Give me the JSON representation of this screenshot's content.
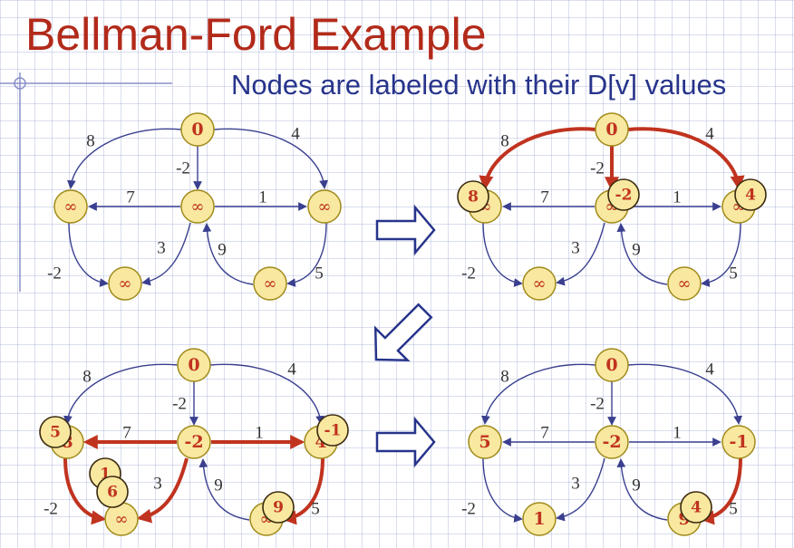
{
  "title": "Bellman-Ford Example",
  "subtitle": "Nodes are labeled with their D[v] values",
  "colors": {
    "title": "#b22a1a",
    "subtitle": "#27348b",
    "edge": "#3a3f8f",
    "highlight_edge": "#c0331f",
    "node_fill": "#f8e8a0",
    "node_text": "#c0331f",
    "arrow_outline": "#27348b"
  },
  "edges": [
    {
      "from": "s",
      "to": "a",
      "weight": "8"
    },
    {
      "from": "s",
      "to": "b",
      "weight": "-2"
    },
    {
      "from": "s",
      "to": "c",
      "weight": "4"
    },
    {
      "from": "b",
      "to": "a",
      "weight": "7"
    },
    {
      "from": "b",
      "to": "c",
      "weight": "1"
    },
    {
      "from": "b",
      "to": "d",
      "weight": "3"
    },
    {
      "from": "a",
      "to": "d",
      "weight": "-2"
    },
    {
      "from": "e",
      "to": "b",
      "weight": "9"
    },
    {
      "from": "c",
      "to": "e",
      "weight": "5"
    }
  ],
  "frames": [
    {
      "nodes": {
        "s": "0",
        "a": "∞",
        "b": "∞",
        "c": "∞",
        "d": "∞",
        "e": "∞"
      },
      "highlight": [],
      "badges": []
    },
    {
      "nodes": {
        "s": "0",
        "a": "∞",
        "b": "∞",
        "c": "∞",
        "d": "∞",
        "e": "∞"
      },
      "highlight": [
        "s-a",
        "s-b",
        "s-c"
      ],
      "badges": [
        {
          "node": "a",
          "value": "8",
          "side": "upper-left"
        },
        {
          "node": "b",
          "value": "-2",
          "side": "upper-right"
        },
        {
          "node": "c",
          "value": "4",
          "side": "upper-right"
        }
      ]
    },
    {
      "nodes": {
        "s": "0",
        "a": "8",
        "b": "-2",
        "c": "4",
        "d": "∞",
        "e": "∞"
      },
      "highlight": [
        "b-a",
        "b-c",
        "b-d",
        "a-d",
        "c-e"
      ],
      "badges": [
        {
          "node": "a",
          "value": "5",
          "side": "upper-left"
        },
        {
          "node": "c",
          "value": "-1",
          "side": "upper-right"
        },
        {
          "node": "d",
          "value": "1",
          "side": "stack-top"
        },
        {
          "node": "d",
          "value": "6",
          "side": "stack-mid"
        },
        {
          "node": "e",
          "value": "9",
          "side": "upper-right"
        }
      ]
    },
    {
      "nodes": {
        "s": "0",
        "a": "5",
        "b": "-2",
        "c": "-1",
        "d": "1",
        "e": "9"
      },
      "highlight": [
        "c-e"
      ],
      "badges": [
        {
          "node": "e",
          "value": "4",
          "side": "upper-right"
        }
      ]
    }
  ]
}
